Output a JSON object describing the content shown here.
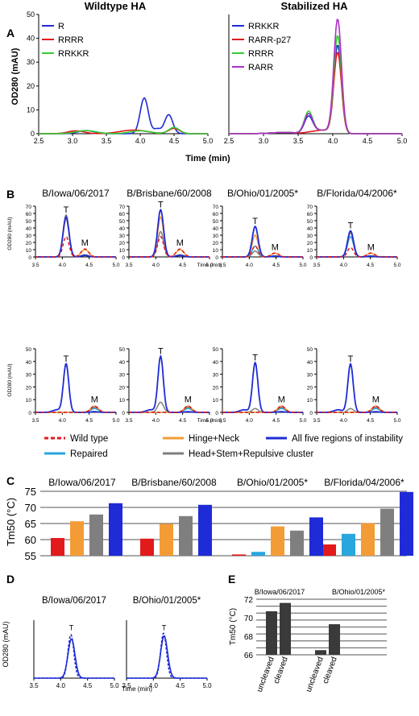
{
  "panel_letters": [
    "A",
    "B",
    "C",
    "D",
    "E"
  ],
  "colors": {
    "blue": "#1f2bd6",
    "red": "#e31a1c",
    "green": "#33cc33",
    "purple": "#b030c8",
    "orange": "#f39c35",
    "lightblue": "#29a6de",
    "gray": "#7f7f7f",
    "dark": "#3a3a3a"
  },
  "panelA": {
    "titles": [
      "Wildtype HA",
      "Stabilized HA"
    ],
    "ylabel": "OD280 (mAU)",
    "xlabel": "Time (min)",
    "left_legend": [
      "R",
      "RRRR",
      "RRKKR"
    ],
    "right_legend": [
      "RRKKR",
      "RARR-p27",
      "RRRR",
      "RARR"
    ]
  },
  "panelB": {
    "titles": [
      "B/Iowa/06/2017",
      "B/Brisbane/60/2008",
      "B/Ohio/01/2005*",
      "B/Florida/04/2006*"
    ],
    "ylabel": "OD280 (mAU)",
    "xlabel": "Time (min)",
    "peak_T": "T",
    "peak_M": "M",
    "legend": [
      "Wild type",
      "Hinge+Neck",
      "All five regions of instability",
      "Repaired",
      "Head+Stem+Repulsive cluster"
    ]
  },
  "panelC": {
    "titles": [
      "B/Iowa/06/2017",
      "B/Brisbane/60/2008",
      "B/Ohio/01/2005*",
      "B/Florida/04/2006*"
    ],
    "ylabel": "Tm50 (°C)"
  },
  "panelD": {
    "titles": [
      "B/Iowa/06/2017",
      "B/Ohio/01/2005*"
    ],
    "ylabel": "OD280 (mAU)",
    "xlabel": "Time (min)",
    "peak": "T"
  },
  "panelE": {
    "titles": [
      "B/Iowa/06/2017",
      "B/Ohio/01/2005*"
    ],
    "ylabel": "Tm50 (°C)",
    "categories": [
      "uncleaved",
      "cleaved"
    ]
  },
  "chart_data": [
    {
      "type": "line",
      "panel": "A-left",
      "title": "Wildtype HA",
      "xlabel": "Time (min)",
      "ylabel": "OD280 (mAU)",
      "xlim": [
        2.5,
        5.0
      ],
      "ylim": [
        0,
        50
      ],
      "xticks": [
        "2.5",
        "3.0",
        "3.5",
        "4.0",
        "4.5",
        "5.0"
      ],
      "yticks": [
        "0",
        "10",
        "20",
        "30",
        "40",
        "50"
      ],
      "legend": "top-left",
      "series": [
        {
          "name": "R",
          "color": "#1f2bd6",
          "peaks": [
            [
              2.5,
              0
            ],
            [
              3.2,
              1.5
            ],
            [
              3.8,
              1
            ],
            [
              4.05,
              15
            ],
            [
              4.25,
              2.5
            ],
            [
              4.42,
              8
            ],
            [
              4.6,
              1
            ],
            [
              5.0,
              0.3
            ]
          ]
        },
        {
          "name": "RRRR",
          "color": "#e31a1c",
          "peaks": [
            [
              2.5,
              0
            ],
            [
              3.1,
              1.5
            ],
            [
              3.9,
              1.5
            ],
            [
              4.5,
              2.5
            ],
            [
              5.0,
              0.5
            ]
          ]
        },
        {
          "name": "RRKKR",
          "color": "#33cc33",
          "peaks": [
            [
              2.5,
              0
            ],
            [
              3.2,
              1.5
            ],
            [
              4.0,
              1.5
            ],
            [
              4.5,
              2.8
            ],
            [
              5.0,
              0.5
            ]
          ]
        }
      ]
    },
    {
      "type": "line",
      "panel": "A-right",
      "title": "Stabilized HA",
      "xlabel": "Time (min)",
      "xlim": [
        2.5,
        5.0
      ],
      "ylim": [
        0,
        50
      ],
      "xticks": [
        "2.5",
        "3.0",
        "3.5",
        "4.0",
        "4.5",
        "5.0"
      ],
      "legend": "top-left",
      "series": [
        {
          "name": "RRKKR",
          "color": "#1f2bd6",
          "peaks": [
            [
              3.65,
              7
            ],
            [
              4.07,
              37
            ]
          ]
        },
        {
          "name": "RARR-p27",
          "color": "#e31a1c",
          "peaks": [
            [
              4.07,
              34
            ]
          ]
        },
        {
          "name": "RRRR",
          "color": "#33cc33",
          "peaks": [
            [
              3.65,
              9
            ],
            [
              4.07,
              41
            ]
          ]
        },
        {
          "name": "RARR",
          "color": "#b030c8",
          "peaks": [
            [
              3.65,
              8
            ],
            [
              4.07,
              48
            ]
          ]
        }
      ]
    },
    {
      "type": "line",
      "panel": "B",
      "ylabel": "OD280 (mAU)",
      "xlabel": "Time (min)",
      "xlim": [
        3.5,
        5.0
      ],
      "xticks": [
        "3.5",
        "4.0",
        "4.5",
        "5.0"
      ],
      "row1_ylim": [
        0,
        70
      ],
      "row1_yticks": [
        "0",
        "10",
        "20",
        "30",
        "40",
        "50",
        "60",
        "70"
      ],
      "row2_ylim": [
        0,
        50
      ],
      "row2_yticks": [
        "0",
        "10",
        "20",
        "30",
        "40",
        "50"
      ],
      "series_names": [
        "Wild type",
        "Hinge+Neck",
        "All five regions of instability",
        "Repaired",
        "Head+Stem+Repulsive cluster"
      ],
      "row1_T_peaks": {
        "B/Iowa/06/2017": {
          "Wild type": 28,
          "Hinge+Neck": 52,
          "All five regions of instability": 55,
          "Head+Stem+Repulsive cluster": 58
        },
        "B/Brisbane/60/2008": {
          "Wild type": 28,
          "Hinge+Neck": 55,
          "All five regions of instability": 65,
          "Head+Stem+Repulsive cluster": 35
        },
        "B/Ohio/01/2005*": {
          "Wild type": 15,
          "Hinge+Neck": 30,
          "All five regions of instability": 42,
          "Repaired": 15,
          "Head+Stem+Repulsive cluster": 8
        },
        "B/Florida/04/2006*": {
          "Wild type": 13,
          "Hinge+Neck": 35,
          "All five regions of instability": 36,
          "Repaired": 28,
          "Head+Stem+Repulsive cluster": 33
        }
      },
      "row2_T_peaks": {
        "B/Iowa/06/2017": {
          "All five regions of instability": 38
        },
        "B/Brisbane/60/2008": {
          "All five regions of instability": 44,
          "Head+Stem+Repulsive cluster": 8
        },
        "B/Ohio/01/2005*": {
          "All five regions of instability": 39,
          "Head+Stem+Repulsive cluster": 3
        },
        "B/Florida/04/2006*": {
          "All five regions of instability": 38,
          "Head+Stem+Repulsive cluster": 3
        }
      }
    },
    {
      "type": "bar",
      "panel": "C",
      "ylabel": "Tm50 (°C)",
      "ylim": [
        55,
        75
      ],
      "yticks": [
        "55",
        "60",
        "65",
        "70",
        "75"
      ],
      "categories": [
        "B/Iowa/06/2017",
        "B/Brisbane/60/2008",
        "B/Ohio/01/2005*",
        "B/Florida/04/2006*"
      ],
      "series": [
        {
          "color": "#e31a1c",
          "values": [
            60.5,
            60.3,
            55.4,
            58.5
          ]
        },
        {
          "color": "#29a6de",
          "values": [
            null,
            null,
            56.2,
            61.8
          ]
        },
        {
          "color": "#f39c35",
          "values": [
            65.7,
            64.9,
            64.1,
            65.1
          ]
        },
        {
          "color": "#7f7f7f",
          "values": [
            67.8,
            67.3,
            62.8,
            69.6
          ]
        },
        {
          "color": "#1f2bd6",
          "values": [
            71.3,
            70.8,
            66.9,
            74.8
          ]
        }
      ]
    },
    {
      "type": "line",
      "panel": "D",
      "ylabel": "OD280 (mAU)",
      "xlabel": "Time (min)",
      "xlim": [
        3.5,
        5.0
      ],
      "ylim": [
        0,
        200
      ],
      "xticks": [
        "3.5",
        "4.0",
        "4.5",
        "5.0"
      ],
      "yticks": [
        "0",
        "50",
        "100",
        "150",
        "200"
      ],
      "series": [
        {
          "style": "solid",
          "peaks": {
            "B/Iowa/06/2017": 135,
            "B/Ohio/01/2005*": 145
          }
        },
        {
          "style": "dashed",
          "peaks": {
            "B/Iowa/06/2017": 150,
            "B/Ohio/01/2005*": 155
          }
        }
      ]
    },
    {
      "type": "bar",
      "panel": "E",
      "ylabel": "Tm50 (°C)",
      "ylim": [
        66,
        72
      ],
      "yticks": [
        "66",
        "68",
        "70",
        "72"
      ],
      "categories": [
        "uncleaved",
        "cleaved"
      ],
      "groups": [
        {
          "name": "B/Iowa/06/2017",
          "values": [
            70.7,
            71.6
          ]
        },
        {
          "name": "B/Ohio/01/2005*",
          "values": [
            66.5,
            69.3
          ]
        }
      ],
      "color": "#3a3a3a"
    }
  ]
}
